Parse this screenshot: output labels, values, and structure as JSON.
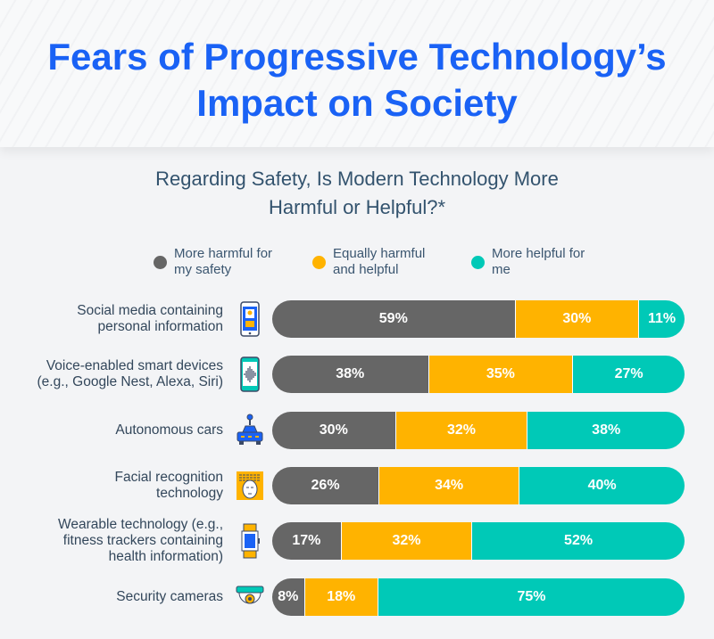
{
  "title": "Fears of Progressive Technology’s Impact on Society",
  "chart_data": {
    "type": "bar",
    "orientation": "horizontal-stacked-100",
    "title": "Regarding Safety, Is Modern Technology More Harmful or Helpful?*",
    "categories": [
      "Social media containing\npersonal information",
      "Voice-enabled smart devices\n(e.g., Google Nest, Alexa, Siri)",
      "Autonomous cars",
      "Facial recognition\ntechnology",
      "Wearable technology (e.g.,\nfitness trackers containing\nhealth information)",
      "Security cameras"
    ],
    "icons": [
      "smartphone-profile-icon",
      "smartphone-voice-icon",
      "autonomous-car-icon",
      "facial-recognition-icon",
      "wearable-tracker-icon",
      "security-camera-icon"
    ],
    "series": [
      {
        "name": "More harmful for my safety",
        "color": "#666666",
        "values": [
          59,
          38,
          30,
          26,
          17,
          8
        ]
      },
      {
        "name": "Equally harmful and helpful",
        "color": "#ffb300",
        "values": [
          30,
          35,
          32,
          34,
          32,
          18
        ]
      },
      {
        "name": "More helpful for me",
        "color": "#00c9b7",
        "values": [
          11,
          27,
          38,
          40,
          52,
          75
        ]
      }
    ],
    "legend": "top",
    "unit": "%"
  }
}
